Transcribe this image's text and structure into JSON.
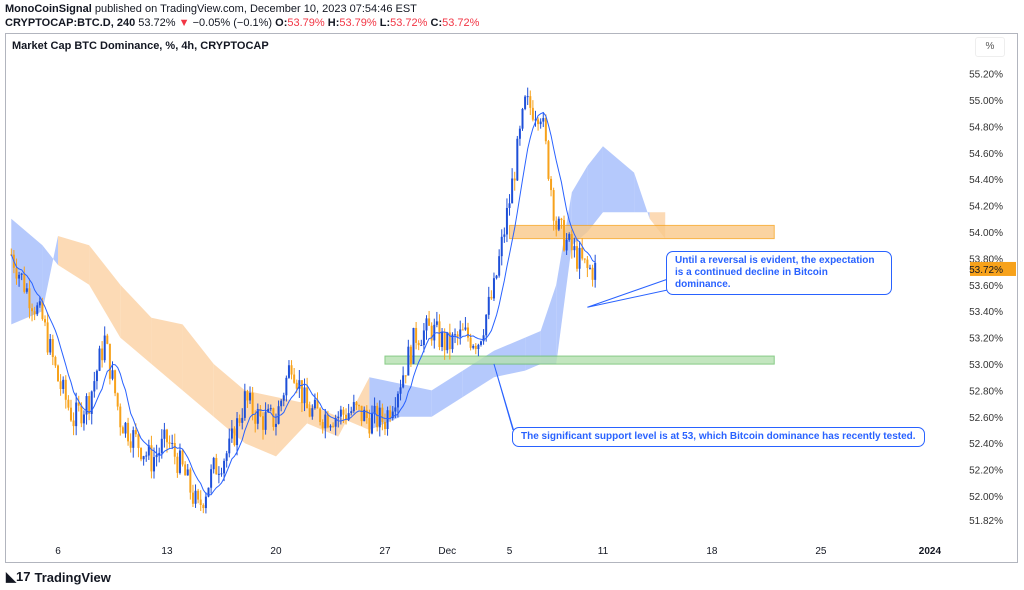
{
  "header": {
    "author": "MonoCoinSignal",
    "published": "published on TradingView.com, December 10, 2023 07:54:46 EST",
    "symbol": "CRYPTOCAP:BTC.D, 240",
    "last": "53.72%",
    "change": "−0.05% (−0.1%)",
    "o_label": "O:",
    "o": "53.79%",
    "h_label": "H:",
    "h": "53.79%",
    "l_label": "L:",
    "l": "53.72%",
    "c_label": "C:",
    "c": "53.72%"
  },
  "chart_title": "Market Cap BTC Dominance, %, 4h, CRYPTOCAP",
  "scale_button": "%",
  "logo": "TradingView",
  "colors": {
    "up": "#1e4fd8",
    "down": "#f7a21b",
    "cloud_bull": "#a8c0fb",
    "cloud_bear": "#fcd3a8",
    "ma": "#2962ff",
    "annotation": "#2962ff",
    "last_price": "#f7a21b",
    "resistance": "#f9c98a",
    "support": "#b5e0b0"
  },
  "chart_data": {
    "type": "candlestick",
    "interval": "4h",
    "ylim": [
      51.82,
      55.3
    ],
    "y_ticks": [
      "55.20%",
      "55.00%",
      "54.80%",
      "54.60%",
      "54.40%",
      "54.20%",
      "54.00%",
      "53.80%",
      "53.60%",
      "53.40%",
      "53.20%",
      "53.00%",
      "52.80%",
      "52.60%",
      "52.40%",
      "52.20%",
      "52.00%",
      "51.82%"
    ],
    "x_ticks": [
      {
        "date": "2023-11-06",
        "label": "6"
      },
      {
        "date": "2023-11-13",
        "label": "13"
      },
      {
        "date": "2023-11-20",
        "label": "20"
      },
      {
        "date": "2023-11-27",
        "label": "27"
      },
      {
        "date": "2023-12-01",
        "label": "Dec"
      },
      {
        "date": "2023-12-05",
        "label": "5"
      },
      {
        "date": "2023-12-11",
        "label": "11"
      },
      {
        "date": "2023-12-18",
        "label": "18"
      },
      {
        "date": "2023-12-25",
        "label": "25"
      },
      {
        "date": "2024-01-01",
        "label": "2024"
      }
    ],
    "x_range": [
      "2023-11-03",
      "2024-01-02"
    ],
    "approx_closes": [
      [
        "2023-11-03",
        53.83
      ],
      [
        "2023-11-04",
        53.56
      ],
      [
        "2023-11-05",
        53.33
      ],
      [
        "2023-11-06",
        52.88
      ],
      [
        "2023-11-07",
        52.58
      ],
      [
        "2023-11-08",
        52.73
      ],
      [
        "2023-11-09",
        53.18
      ],
      [
        "2023-11-10",
        52.58
      ],
      [
        "2023-11-11",
        52.42
      ],
      [
        "2023-11-12",
        52.27
      ],
      [
        "2023-11-13",
        52.42
      ],
      [
        "2023-11-14",
        52.2
      ],
      [
        "2023-11-15",
        51.9
      ],
      [
        "2023-11-16",
        52.2
      ],
      [
        "2023-11-17",
        52.35
      ],
      [
        "2023-11-18",
        52.73
      ],
      [
        "2023-11-19",
        52.58
      ],
      [
        "2023-11-20",
        52.58
      ],
      [
        "2023-11-21",
        53.03
      ],
      [
        "2023-11-22",
        52.65
      ],
      [
        "2023-11-23",
        52.61
      ],
      [
        "2023-11-24",
        52.61
      ],
      [
        "2023-11-25",
        52.65
      ],
      [
        "2023-11-26",
        52.58
      ],
      [
        "2023-11-27",
        52.58
      ],
      [
        "2023-11-28",
        52.88
      ],
      [
        "2023-11-29",
        53.22
      ],
      [
        "2023-11-30",
        53.26
      ],
      [
        "2023-12-01",
        53.14
      ],
      [
        "2023-12-02",
        53.22
      ],
      [
        "2023-12-03",
        53.18
      ],
      [
        "2023-12-04",
        53.56
      ],
      [
        "2023-12-05",
        54.24
      ],
      [
        "2023-12-06",
        54.96
      ],
      [
        "2023-12-07",
        54.92
      ],
      [
        "2023-12-08",
        54.05
      ],
      [
        "2023-12-09",
        53.86
      ],
      [
        "2023-12-10",
        53.71
      ],
      [
        "2023-12-10T12",
        53.72
      ]
    ],
    "ichimoku_cloud": [
      [
        "2023-11-03",
        54.1,
        53.3
      ],
      [
        "2023-11-05",
        53.9,
        53.4
      ],
      [
        "2023-11-06",
        53.75,
        53.97
      ],
      [
        "2023-11-08",
        53.6,
        53.9
      ],
      [
        "2023-11-10",
        53.2,
        53.6
      ],
      [
        "2023-11-12",
        53.0,
        53.35
      ],
      [
        "2023-11-14",
        52.8,
        53.3
      ],
      [
        "2023-11-16",
        52.6,
        53.0
      ],
      [
        "2023-11-18",
        52.4,
        52.8
      ],
      [
        "2023-11-20",
        52.3,
        52.75
      ],
      [
        "2023-11-22",
        52.55,
        52.7
      ],
      [
        "2023-11-24",
        52.45,
        52.6
      ],
      [
        "2023-11-26",
        52.9,
        52.5
      ],
      [
        "2023-11-28",
        52.85,
        52.6
      ],
      [
        "2023-11-30",
        52.8,
        52.6
      ],
      [
        "2023-12-02",
        52.95,
        52.75
      ],
      [
        "2023-12-04",
        53.1,
        52.9
      ],
      [
        "2023-12-06",
        53.2,
        52.95
      ],
      [
        "2023-12-07",
        53.25,
        53.0
      ],
      [
        "2023-12-08",
        53.6,
        53.0
      ],
      [
        "2023-12-09",
        54.3,
        53.9
      ],
      [
        "2023-12-10",
        54.5,
        54.0
      ],
      [
        "2023-12-11",
        54.65,
        54.15
      ],
      [
        "2023-12-13",
        54.45,
        54.15
      ],
      [
        "2023-12-14",
        54.1,
        54.15
      ],
      [
        "2023-12-15",
        53.95,
        54.15
      ]
    ],
    "zones": [
      {
        "name": "resistance",
        "from": "2023-12-05",
        "to": "2023-12-22",
        "low": 53.95,
        "high": 54.05
      },
      {
        "name": "support",
        "from": "2023-11-27",
        "to": "2023-12-22",
        "low": 53.0,
        "high": 53.06
      }
    ],
    "last_price": "53.72%",
    "annotations": [
      {
        "text": "Until a reversal is evident, the expectation is a continued decline in Bitcoin dominance.",
        "target": [
          "2023-12-10",
          53.43
        ]
      },
      {
        "text": "The significant support level is at 53, which Bitcoin dominance has recently tested.",
        "target": [
          "2023-12-04",
          53.0
        ]
      }
    ]
  }
}
